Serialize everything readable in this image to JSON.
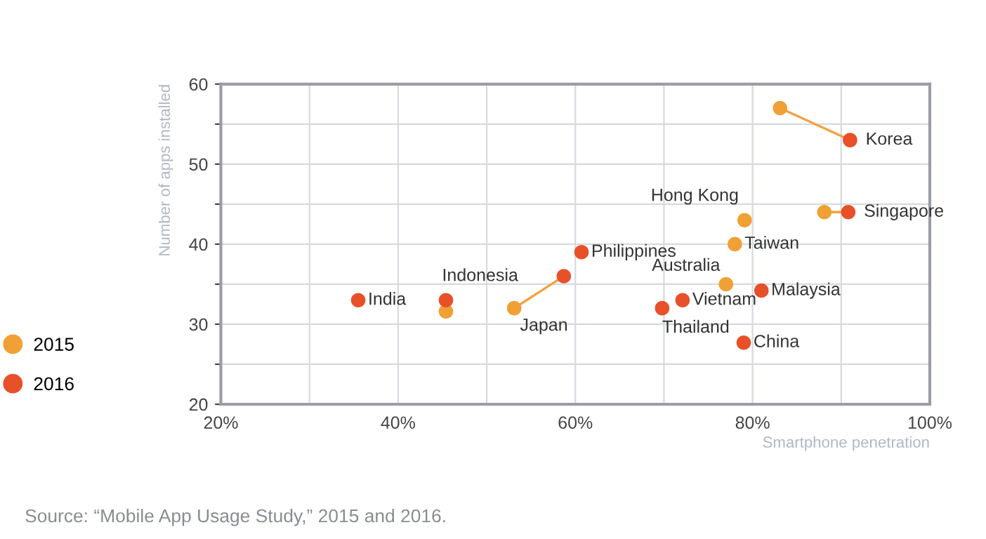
{
  "chart_data": {
    "type": "scatter",
    "xlabel": "Smartphone penetration",
    "ylabel": "Number of apps installed",
    "xlim": [
      20,
      100
    ],
    "ylim": [
      20,
      60
    ],
    "xticks": [
      {
        "value": 20,
        "label": "20%"
      },
      {
        "value": 30,
        "label": null
      },
      {
        "value": 40,
        "label": "40%"
      },
      {
        "value": 50,
        "label": null
      },
      {
        "value": 60,
        "label": "60%"
      },
      {
        "value": 70,
        "label": null
      },
      {
        "value": 80,
        "label": "80%"
      },
      {
        "value": 90,
        "label": null
      },
      {
        "value": 100,
        "label": "100%"
      }
    ],
    "yticks": [
      20,
      {
        "value": 25,
        "label": null
      },
      30,
      {
        "value": 35,
        "label": null
      },
      40,
      {
        "value": 45,
        "label": null
      },
      50,
      {
        "value": 55,
        "label": null
      },
      60
    ],
    "grid": true,
    "legend": "left",
    "marker": "circle",
    "series": [
      {
        "type": "line",
        "color": "#f5a040",
        "x": [
          83.1,
          91.0
        ],
        "values": [
          57,
          53
        ],
        "marker": "none"
      },
      {
        "type": "line",
        "color": "#f5a040",
        "x": [
          88.1,
          90.8
        ],
        "values": [
          44,
          44
        ],
        "marker": "none"
      },
      {
        "type": "line",
        "color": "#f5a040",
        "x": [
          53.1,
          58.7
        ],
        "values": [
          32,
          36
        ],
        "marker": "none"
      },
      {
        "name": "2015",
        "color": "#f0a035",
        "x": [
          83.1,
          88.1,
          79.1,
          78.0,
          53.1,
          45.4,
          77.0
        ],
        "values": [
          57,
          44,
          43,
          40,
          32,
          31.6,
          35
        ]
      },
      {
        "name": "2016",
        "color": "#e8502a",
        "x": [
          91.0,
          90.8,
          60.7,
          58.7,
          45.4,
          35.5,
          81.0,
          72.1,
          69.8,
          79.0
        ],
        "values": [
          53,
          44,
          39,
          36,
          33,
          33,
          34.2,
          33,
          32,
          27.7
        ]
      }
    ],
    "annotations": [
      {
        "text": "Korea",
        "x": 91.0,
        "y": 53
      },
      {
        "text": "Singapore",
        "x": 90.8,
        "y": 44
      },
      {
        "text": "Hong Kong",
        "x": 79.1,
        "y": 43
      },
      {
        "text": "Taiwan",
        "x": 78.0,
        "y": 40
      },
      {
        "text": "Philippines",
        "x": 60.7,
        "y": 39
      },
      {
        "text": "Australia",
        "x": 77.0,
        "y": 35
      },
      {
        "text": "Malaysia",
        "x": 81.0,
        "y": 34.2
      },
      {
        "text": "Vietnam",
        "x": 72.1,
        "y": 33
      },
      {
        "text": "Thailand",
        "x": 69.8,
        "y": 32
      },
      {
        "text": "China",
        "x": 79.0,
        "y": 27.7
      },
      {
        "text": "India",
        "x": 35.5,
        "y": 33
      },
      {
        "text": "Indonesia",
        "x": 45.4,
        "y": 33
      },
      {
        "text": "Japan",
        "x": 53.1,
        "y": 32
      },
      "Source: “Mobile App Usage Study,” 2015 and 2016."
    ]
  }
}
